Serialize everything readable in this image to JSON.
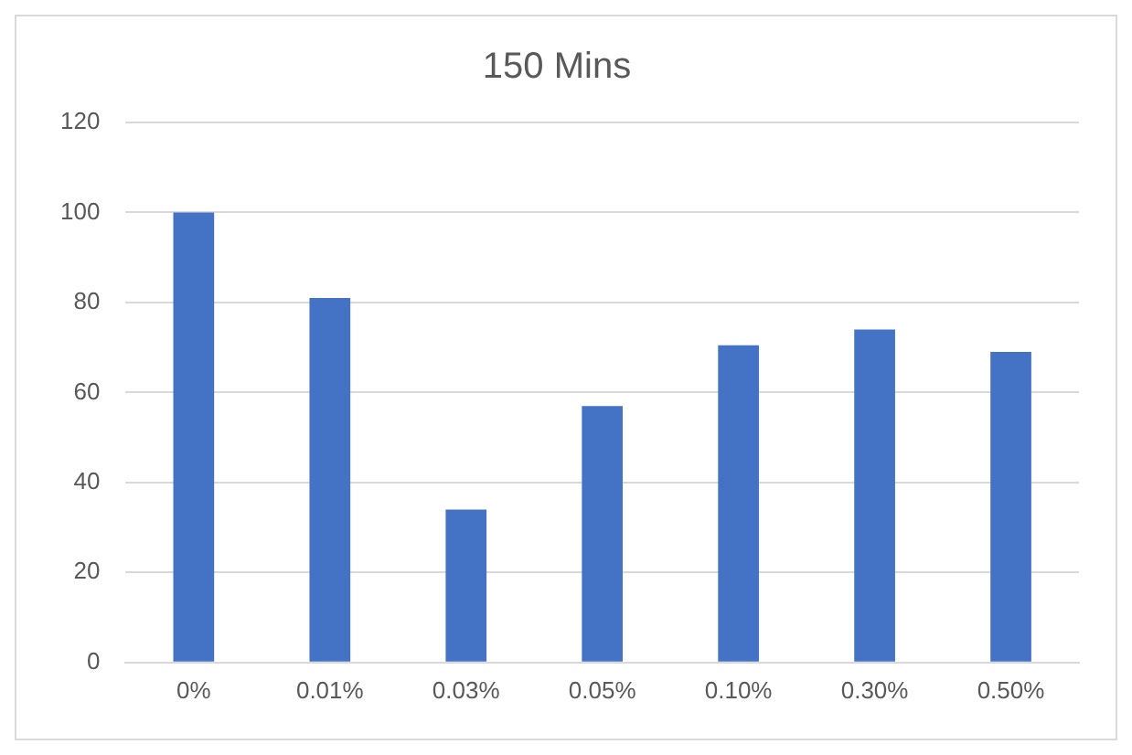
{
  "chart_data": {
    "type": "bar",
    "title": "150 Mins",
    "categories": [
      "0%",
      "0.01%",
      "0.03%",
      "0.05%",
      "0.10%",
      "0.30%",
      "0.50%"
    ],
    "values": [
      100,
      81,
      34,
      57,
      70.5,
      74,
      69
    ],
    "color": "#4472c4",
    "ylim": [
      0,
      120
    ],
    "yticks": [
      0,
      20,
      40,
      60,
      80,
      100,
      120
    ],
    "grid": "y",
    "legend": false
  }
}
